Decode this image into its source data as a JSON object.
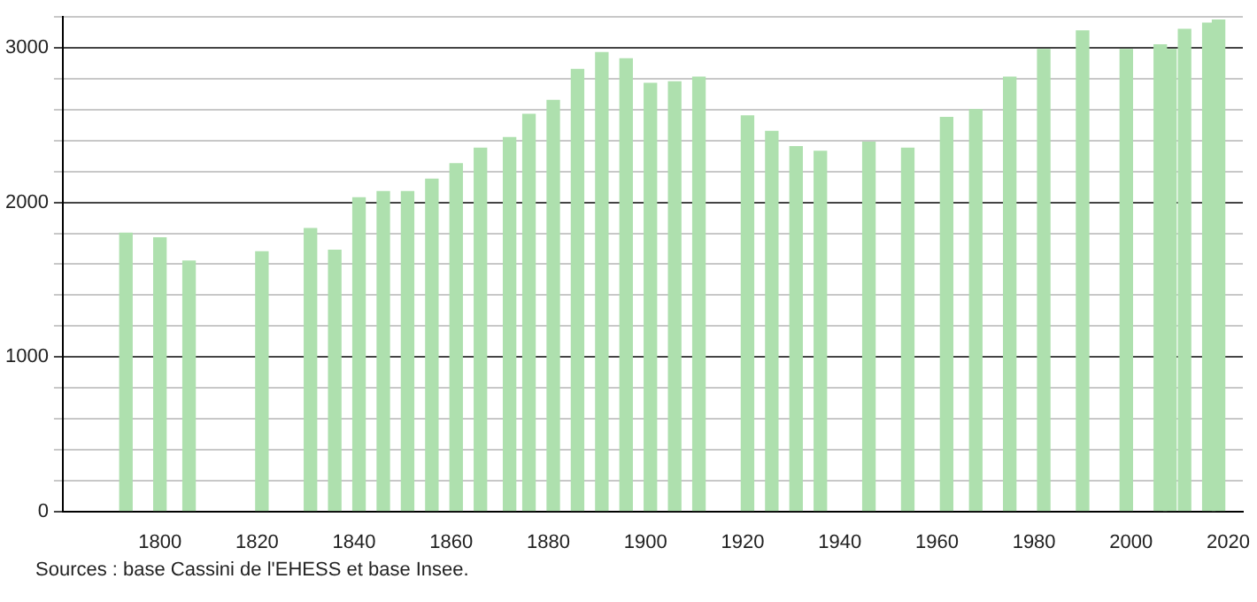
{
  "chart_data": {
    "type": "bar",
    "x": [
      1793,
      1800,
      1806,
      1821,
      1831,
      1836,
      1841,
      1846,
      1851,
      1856,
      1861,
      1866,
      1872,
      1876,
      1881,
      1886,
      1891,
      1896,
      1901,
      1906,
      1911,
      1921,
      1926,
      1931,
      1936,
      1946,
      1954,
      1962,
      1968,
      1975,
      1982,
      1990,
      1999,
      2006,
      2008,
      2011,
      2016,
      2018
    ],
    "values": [
      1800,
      1770,
      1620,
      1680,
      1830,
      1690,
      2030,
      2070,
      2070,
      2150,
      2250,
      2350,
      2420,
      2570,
      2660,
      2860,
      2970,
      2930,
      2770,
      2780,
      2810,
      2560,
      2460,
      2360,
      2330,
      2390,
      2350,
      2550,
      2600,
      2810,
      2990,
      3110,
      2990,
      3020,
      2990,
      3120,
      3160,
      3180
    ],
    "color": "#aee0ae",
    "xlim": [
      1780,
      2023
    ],
    "xticks": [
      1800,
      1820,
      1840,
      1860,
      1880,
      1900,
      1920,
      1940,
      1960,
      1980,
      2000,
      2020
    ],
    "ylim": [
      0,
      3200
    ],
    "yticks": [
      0,
      {
        "value": 200,
        "label": null
      },
      {
        "value": 400,
        "label": null
      },
      {
        "value": 600,
        "label": null
      },
      {
        "value": 800,
        "label": null
      },
      1000,
      {
        "value": 1200,
        "label": null
      },
      {
        "value": 1400,
        "label": null
      },
      {
        "value": 1600,
        "label": null
      },
      {
        "value": 1800,
        "label": null
      },
      2000,
      {
        "value": 2200,
        "label": null
      },
      {
        "value": 2400,
        "label": null
      },
      {
        "value": 2600,
        "label": null
      },
      {
        "value": 2800,
        "label": null
      },
      3000,
      {
        "value": 3200,
        "label": null
      }
    ],
    "grid": "y",
    "annotations": [
      "Sources : base Cassini de l'EHESS et base Insee."
    ]
  }
}
